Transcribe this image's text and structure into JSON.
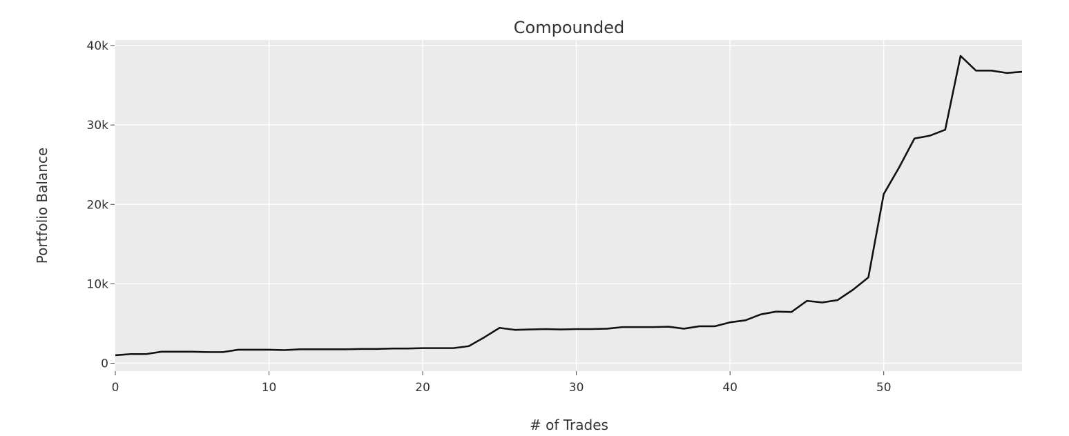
{
  "chart_data": {
    "type": "line",
    "title": "Compounded",
    "xlabel": "# of Trades",
    "ylabel": "Portfolio Balance",
    "xlim": [
      0,
      59
    ],
    "ylim": [
      -1000,
      40700
    ],
    "x_ticks": [
      0,
      10,
      20,
      30,
      40,
      50
    ],
    "x_tick_labels": [
      "0",
      "10",
      "20",
      "30",
      "40",
      "50"
    ],
    "y_ticks": [
      0,
      10000,
      20000,
      30000,
      40000
    ],
    "y_tick_labels": [
      "0",
      "10k",
      "20k",
      "30k",
      "40k"
    ],
    "grid": true,
    "background": "#ebebeb",
    "grid_color": "#ffffff",
    "line_color": "#111111",
    "series": [
      {
        "x": [
          0,
          1,
          2,
          3,
          4,
          5,
          6,
          7,
          8,
          9,
          10,
          11,
          12,
          13,
          14,
          15,
          16,
          17,
          18,
          19,
          20,
          21,
          22,
          23,
          24,
          25,
          26,
          27,
          28,
          29,
          30,
          31,
          32,
          33,
          34,
          35,
          36,
          37,
          38,
          39,
          40,
          41,
          42,
          43,
          44,
          45,
          46,
          47,
          48,
          49,
          50,
          51,
          52,
          53,
          54,
          55,
          56,
          57,
          58,
          59
        ],
        "values": [
          1000,
          1150,
          1150,
          1450,
          1450,
          1450,
          1400,
          1400,
          1700,
          1700,
          1700,
          1650,
          1750,
          1750,
          1750,
          1750,
          1800,
          1800,
          1850,
          1850,
          1900,
          1900,
          1900,
          2150,
          3250,
          4450,
          4200,
          4250,
          4300,
          4250,
          4300,
          4300,
          4350,
          4550,
          4550,
          4550,
          4600,
          4350,
          4650,
          4650,
          5150,
          5400,
          6150,
          6500,
          6450,
          7850,
          7650,
          7950,
          9250,
          10800,
          21300,
          24650,
          28300,
          28650,
          29400,
          38700,
          36850,
          36850,
          36550,
          36700
        ]
      }
    ]
  }
}
